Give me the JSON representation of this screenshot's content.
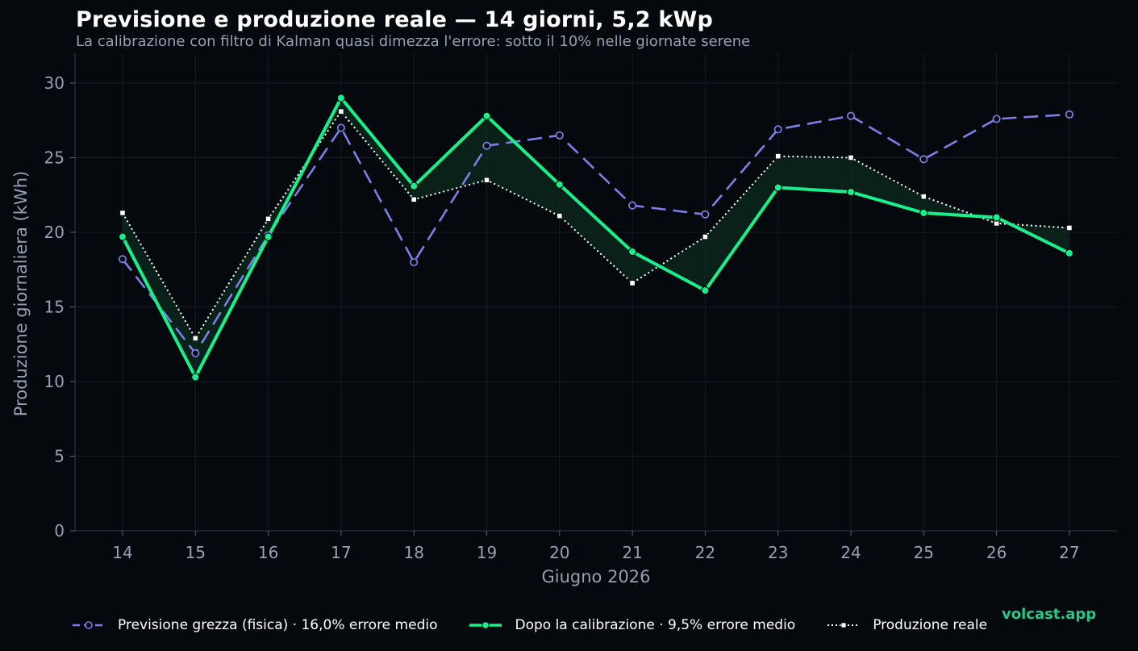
{
  "title": "Previsione e produzione reale — 14 giorni, 5,2 kWp",
  "subtitle": "La calibrazione con filtro di Kalman quasi dimezza l'errore: sotto il 10% nelle giornate serene",
  "brand": "volcast.app",
  "colors": {
    "background": "#05080c",
    "raw": "#7b7fe6",
    "calibrated": "#18f08c",
    "actual": "#ffffff",
    "fill": "#0b2a1e",
    "grid": "#161d26",
    "axis_text": "#94a0b4"
  },
  "legend": {
    "raw": "Previsione grezza (fisica)  ·  16,0% errore medio",
    "calibrated": "Dopo la calibrazione  ·  9,5% errore medio",
    "actual": "Produzione reale"
  },
  "chart_data": {
    "type": "line",
    "xlabel": "Giugno 2026",
    "ylabel": "Produzione giornaliera (kWh)",
    "ylim": [
      0,
      32
    ],
    "yticks": [
      0,
      5,
      10,
      15,
      20,
      25,
      30
    ],
    "grid": true,
    "legend_position": "bottom",
    "x": [
      "14",
      "15",
      "16",
      "17",
      "18",
      "19",
      "20",
      "21",
      "22",
      "23",
      "24",
      "25",
      "26",
      "27"
    ],
    "series": [
      {
        "name": "Previsione grezza (fisica)",
        "key": "raw",
        "values": [
          18.2,
          11.9,
          19.8,
          27.0,
          18.0,
          25.8,
          26.5,
          21.8,
          21.2,
          26.9,
          27.8,
          24.9,
          27.6,
          27.9
        ]
      },
      {
        "name": "Dopo la calibrazione",
        "key": "calibrated",
        "values": [
          19.7,
          10.3,
          19.7,
          29.0,
          23.1,
          27.8,
          23.2,
          18.7,
          16.1,
          23.0,
          22.7,
          21.3,
          21.0,
          18.6
        ]
      },
      {
        "name": "Produzione reale",
        "key": "actual",
        "values": [
          21.3,
          12.9,
          20.9,
          28.1,
          22.2,
          23.5,
          21.1,
          16.6,
          19.7,
          25.1,
          25.0,
          22.4,
          20.6,
          20.3
        ]
      }
    ]
  }
}
